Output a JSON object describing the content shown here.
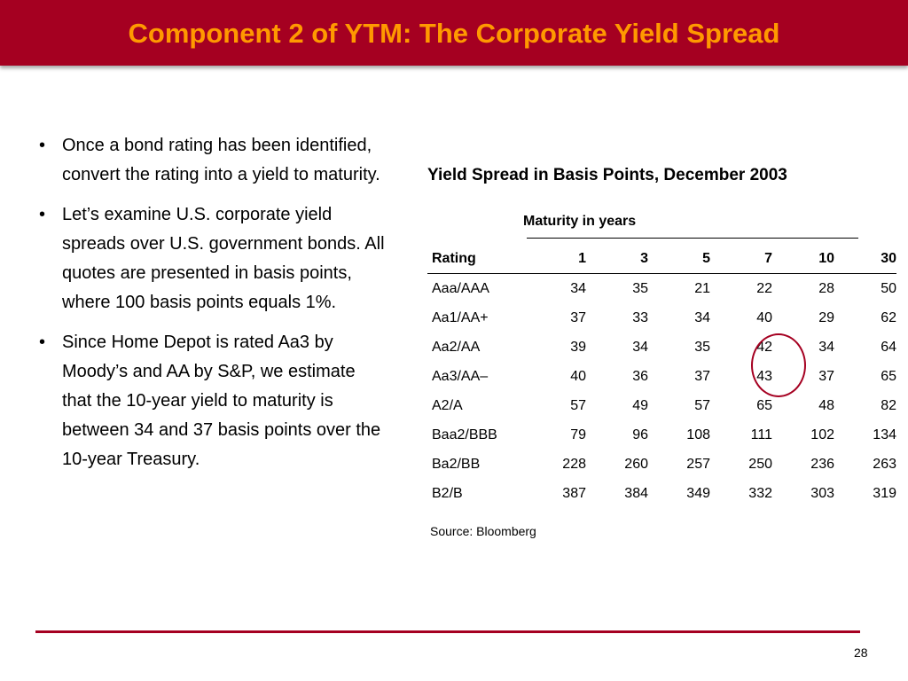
{
  "slide": {
    "title": "Component 2 of YTM: The Corporate Yield Spread",
    "page_number": "28"
  },
  "bullets": [
    "Once a bond rating has been identified, convert the rating into a yield to maturity.",
    "Let’s examine U.S. corporate yield spreads over U.S. government bonds. All quotes are presented in basis points, where 100 basis points equals 1%.",
    "Since Home Depot is rated Aa3 by Moody’s and AA by S&P, we estimate that the 10-year yield to maturity is between 34 and 37 basis points over the 10-year Treasury."
  ],
  "table": {
    "title": "Yield Spread in Basis Points, December 2003",
    "group_header": "Maturity in years",
    "headers": [
      "Rating",
      "1",
      "3",
      "5",
      "7",
      "10",
      "30"
    ],
    "rows": [
      [
        "Aaa/AAA",
        "34",
        "35",
        "21",
        "22",
        "28",
        "50"
      ],
      [
        "Aa1/AA+",
        "37",
        "33",
        "34",
        "40",
        "29",
        "62"
      ],
      [
        "Aa2/AA",
        "39",
        "34",
        "35",
        "42",
        "34",
        "64"
      ],
      [
        "Aa3/AA–",
        "40",
        "36",
        "37",
        "43",
        "37",
        "65"
      ],
      [
        "A2/A",
        "57",
        "49",
        "57",
        "65",
        "48",
        "82"
      ],
      [
        "Baa2/BBB",
        "79",
        "96",
        "108",
        "111",
        "102",
        "134"
      ],
      [
        "Ba2/BB",
        "228",
        "260",
        "257",
        "250",
        "236",
        "263"
      ],
      [
        "B2/B",
        "387",
        "384",
        "349",
        "332",
        "303",
        "319"
      ]
    ],
    "source": "Source: Bloomberg"
  },
  "colors": {
    "title_bar": "#a50021",
    "title_text": "#ff9900",
    "highlight_circle": "#a50021"
  }
}
